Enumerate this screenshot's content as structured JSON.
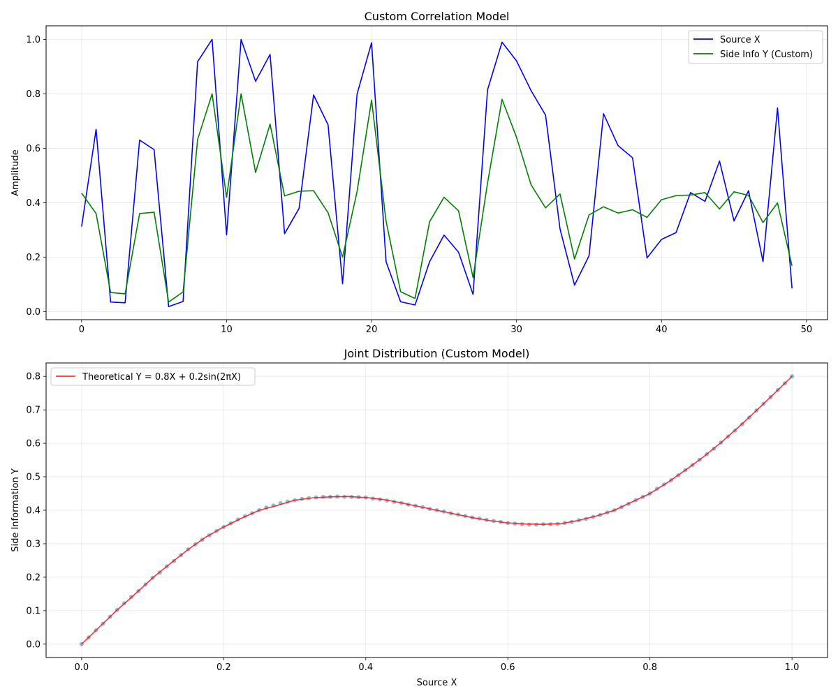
{
  "chart_data": [
    {
      "type": "line",
      "title": "Custom Correlation Model",
      "xlabel": "",
      "ylabel": "Amplitude",
      "xlim": [
        -2.45,
        51.45
      ],
      "ylim": [
        -0.03,
        1.05
      ],
      "xticks": [
        0,
        10,
        20,
        30,
        40,
        50
      ],
      "yticks": [
        0.0,
        0.2,
        0.4,
        0.6,
        0.8,
        1.0
      ],
      "grid": true,
      "legend_position": "top-right",
      "x": [
        0,
        1,
        2,
        3,
        4,
        5,
        6,
        7,
        8,
        9,
        10,
        11,
        12,
        13,
        14,
        15,
        16,
        17,
        18,
        19,
        20,
        21,
        22,
        23,
        24,
        25,
        26,
        27,
        28,
        29,
        30,
        31,
        32,
        33,
        34,
        35,
        36,
        37,
        38,
        39,
        40,
        41,
        42,
        43,
        44,
        45,
        46,
        47,
        48,
        49
      ],
      "series": [
        {
          "name": "Source X",
          "color": "#0000ff",
          "values": [
            0.312,
            0.67,
            0.035,
            0.032,
            0.63,
            0.595,
            0.018,
            0.037,
            0.918,
            1.0,
            0.282,
            1.0,
            0.846,
            0.945,
            0.286,
            0.379,
            0.796,
            0.686,
            0.102,
            0.799,
            0.988,
            0.183,
            0.036,
            0.024,
            0.183,
            0.281,
            0.218,
            0.063,
            0.815,
            0.99,
            0.921,
            0.812,
            0.722,
            0.303,
            0.097,
            0.205,
            0.727,
            0.61,
            0.565,
            0.197,
            0.265,
            0.29,
            0.437,
            0.405,
            0.553,
            0.333,
            0.444,
            0.183,
            0.748,
            0.085
          ]
        },
        {
          "name": "Side Info Y (Custom)",
          "color": "#008000",
          "values": [
            0.435,
            0.36,
            0.07,
            0.065,
            0.36,
            0.365,
            0.035,
            0.072,
            0.632,
            0.8,
            0.42,
            0.8,
            0.511,
            0.689,
            0.425,
            0.442,
            0.444,
            0.363,
            0.2,
            0.441,
            0.777,
            0.332,
            0.073,
            0.048,
            0.33,
            0.42,
            0.37,
            0.125,
            0.472,
            0.78,
            0.64,
            0.466,
            0.381,
            0.432,
            0.193,
            0.355,
            0.385,
            0.362,
            0.374,
            0.346,
            0.411,
            0.426,
            0.428,
            0.437,
            0.377,
            0.44,
            0.427,
            0.327,
            0.399,
            0.168
          ]
        }
      ]
    },
    {
      "type": "scatter",
      "title": "Joint Distribution (Custom Model)",
      "xlabel": "Source X",
      "ylabel": "Side Information Y",
      "xlim": [
        -0.05,
        1.05
      ],
      "ylim": [
        -0.04,
        0.84
      ],
      "xticks": [
        0.0,
        0.2,
        0.4,
        0.6,
        0.8,
        1.0
      ],
      "yticks": [
        0.0,
        0.1,
        0.2,
        0.3,
        0.4,
        0.5,
        0.6,
        0.7,
        0.8
      ],
      "grid": true,
      "legend_position": "top-left",
      "scatter_color": "#1f77b4",
      "curve": {
        "name": "Theoretical Y = 0.8X + 0.2sin(2πX)",
        "color": "#ff0000",
        "x": [
          0.0,
          0.025,
          0.05,
          0.075,
          0.1,
          0.125,
          0.15,
          0.175,
          0.2,
          0.225,
          0.25,
          0.275,
          0.3,
          0.325,
          0.35,
          0.375,
          0.4,
          0.425,
          0.45,
          0.475,
          0.5,
          0.525,
          0.55,
          0.575,
          0.6,
          0.625,
          0.65,
          0.675,
          0.7,
          0.725,
          0.75,
          0.775,
          0.8,
          0.825,
          0.85,
          0.875,
          0.9,
          0.925,
          0.95,
          0.975,
          1.0
        ],
        "y": [
          0.0,
          0.051,
          0.102,
          0.149,
          0.198,
          0.241,
          0.283,
          0.32,
          0.35,
          0.376,
          0.4,
          0.414,
          0.43,
          0.437,
          0.44,
          0.441,
          0.438,
          0.432,
          0.422,
          0.411,
          0.4,
          0.389,
          0.378,
          0.369,
          0.362,
          0.359,
          0.358,
          0.36,
          0.37,
          0.383,
          0.4,
          0.425,
          0.45,
          0.483,
          0.52,
          0.559,
          0.602,
          0.649,
          0.698,
          0.749,
          0.8
        ]
      },
      "points": {
        "x": [
          0.0,
          0.01,
          0.02,
          0.03,
          0.04,
          0.05,
          0.06,
          0.07,
          0.08,
          0.09,
          0.1,
          0.11,
          0.12,
          0.13,
          0.14,
          0.15,
          0.16,
          0.17,
          0.18,
          0.19,
          0.2,
          0.21,
          0.22,
          0.23,
          0.24,
          0.25,
          0.26,
          0.27,
          0.28,
          0.29,
          0.3,
          0.31,
          0.32,
          0.33,
          0.34,
          0.35,
          0.36,
          0.37,
          0.38,
          0.39,
          0.4,
          0.41,
          0.42,
          0.43,
          0.44,
          0.45,
          0.46,
          0.47,
          0.48,
          0.49,
          0.5,
          0.51,
          0.52,
          0.53,
          0.54,
          0.55,
          0.56,
          0.57,
          0.58,
          0.59,
          0.6,
          0.61,
          0.62,
          0.63,
          0.64,
          0.65,
          0.66,
          0.67,
          0.68,
          0.69,
          0.7,
          0.71,
          0.72,
          0.73,
          0.74,
          0.75,
          0.76,
          0.77,
          0.78,
          0.79,
          0.8,
          0.81,
          0.82,
          0.83,
          0.84,
          0.85,
          0.86,
          0.87,
          0.88,
          0.89,
          0.9,
          0.91,
          0.92,
          0.93,
          0.94,
          0.95,
          0.96,
          0.97,
          0.98,
          0.99,
          1.0
        ],
        "y": [
          0.0,
          0.02,
          0.041,
          0.061,
          0.082,
          0.102,
          0.122,
          0.141,
          0.159,
          0.178,
          0.198,
          0.214,
          0.232,
          0.248,
          0.266,
          0.283,
          0.298,
          0.312,
          0.325,
          0.338,
          0.35,
          0.361,
          0.372,
          0.382,
          0.391,
          0.4,
          0.408,
          0.414,
          0.421,
          0.426,
          0.43,
          0.434,
          0.436,
          0.438,
          0.44,
          0.44,
          0.441,
          0.44,
          0.44,
          0.439,
          0.438,
          0.435,
          0.432,
          0.429,
          0.425,
          0.422,
          0.417,
          0.413,
          0.409,
          0.404,
          0.4,
          0.396,
          0.391,
          0.387,
          0.383,
          0.378,
          0.375,
          0.371,
          0.368,
          0.365,
          0.362,
          0.36,
          0.358,
          0.357,
          0.357,
          0.358,
          0.358,
          0.359,
          0.362,
          0.365,
          0.37,
          0.374,
          0.38,
          0.386,
          0.393,
          0.4,
          0.409,
          0.419,
          0.43,
          0.44,
          0.45,
          0.464,
          0.477,
          0.49,
          0.504,
          0.52,
          0.535,
          0.551,
          0.567,
          0.584,
          0.602,
          0.62,
          0.638,
          0.657,
          0.677,
          0.698,
          0.718,
          0.738,
          0.759,
          0.779,
          0.8
        ]
      }
    }
  ]
}
